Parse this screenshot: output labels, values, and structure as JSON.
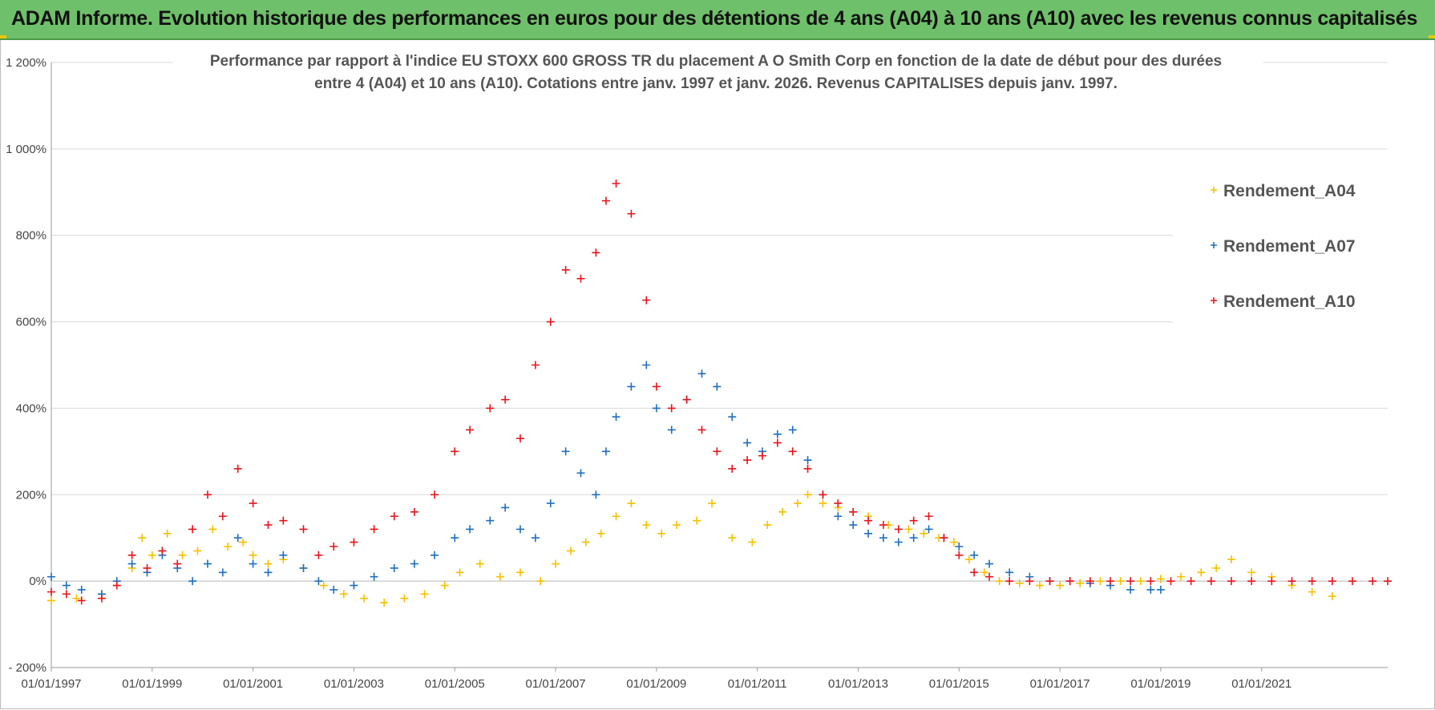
{
  "banner": {
    "title": "ADAM Informe. Evolution historique des performances en euros pour des détentions de 4 ans (A04) à 10 ans (A10) avec les revenus connus capitalisés"
  },
  "chart_data": {
    "type": "scatter",
    "title_lines": [
      "Performance par rapport à l'indice EU STOXX 600 GROSS TR  du placement A O Smith Corp en fonction de la date de début pour des durées",
      "entre 4 (A04) et 10 ans (A10).  Cotations entre janv. 1997 et janv. 2026. Revenus CAPITALISES depuis janv. 1997."
    ],
    "xlabel": "",
    "ylabel": "",
    "xlim": [
      1997.0,
      2023.5
    ],
    "ylim": [
      -200,
      1200
    ],
    "x_ticks": [
      1997,
      1999,
      2001,
      2003,
      2005,
      2007,
      2009,
      2011,
      2013,
      2015,
      2017,
      2019,
      2021
    ],
    "x_tick_labels": [
      "01/01/1997",
      "01/01/1999",
      "01/01/2001",
      "01/01/2003",
      "01/01/2005",
      "01/01/2007",
      "01/01/2009",
      "01/01/2011",
      "01/01/2013",
      "01/01/2015",
      "01/01/2017",
      "01/01/2019",
      "01/01/2021"
    ],
    "y_ticks": [
      -200,
      0,
      200,
      400,
      600,
      800,
      1000,
      1200
    ],
    "y_tick_labels": [
      "- 200%",
      "0%",
      "200%",
      "400%",
      "600%",
      "800%",
      "1 000%",
      "1 200%"
    ],
    "grid": "horizontal",
    "legend_position": "top-right",
    "series": [
      {
        "name": "Rendement_A04",
        "color": "#f5c000",
        "x": [
          1997.0,
          1997.5,
          1998.0,
          1998.3,
          1998.6,
          1998.8,
          1999.0,
          1999.3,
          1999.6,
          1999.9,
          2000.2,
          2000.5,
          2000.8,
          2001.0,
          2001.3,
          2001.6,
          2002.0,
          2002.4,
          2002.8,
          2003.2,
          2003.6,
          2004.0,
          2004.4,
          2004.8,
          2005.1,
          2005.5,
          2005.9,
          2006.3,
          2006.7,
          2007.0,
          2007.3,
          2007.6,
          2007.9,
          2008.2,
          2008.5,
          2008.8,
          2009.1,
          2009.4,
          2009.8,
          2010.1,
          2010.5,
          2010.9,
          2011.2,
          2011.5,
          2011.8,
          2012.0,
          2012.3,
          2012.6,
          2012.9,
          2013.2,
          2013.6,
          2014.0,
          2014.3,
          2014.6,
          2014.9,
          2015.2,
          2015.5,
          2015.8,
          2016.2,
          2016.6,
          2017.0,
          2017.4,
          2017.8,
          2018.2,
          2018.6,
          2019.0,
          2019.4,
          2019.8,
          2020.1,
          2020.4,
          2020.8,
          2021.2,
          2021.6,
          2022.0,
          2022.4
        ],
        "values": [
          -45,
          -40,
          -30,
          -10,
          30,
          100,
          60,
          110,
          60,
          70,
          120,
          80,
          90,
          60,
          40,
          50,
          30,
          -10,
          -30,
          -40,
          -50,
          -40,
          -30,
          -10,
          20,
          40,
          10,
          20,
          0,
          40,
          70,
          90,
          110,
          150,
          180,
          130,
          110,
          130,
          140,
          180,
          100,
          90,
          130,
          160,
          180,
          200,
          180,
          170,
          160,
          150,
          130,
          120,
          110,
          100,
          90,
          50,
          20,
          0,
          -5,
          -10,
          -10,
          -5,
          0,
          0,
          0,
          5,
          10,
          20,
          30,
          50,
          20,
          10,
          -10,
          -25,
          -35
        ]
      },
      {
        "name": "Rendement_A07",
        "color": "#1f6fbf",
        "x": [
          1997.0,
          1997.3,
          1997.6,
          1998.0,
          1998.3,
          1998.6,
          1998.9,
          1999.2,
          1999.5,
          1999.8,
          2000.1,
          2000.4,
          2000.7,
          2001.0,
          2001.3,
          2001.6,
          2002.0,
          2002.3,
          2002.6,
          2003.0,
          2003.4,
          2003.8,
          2004.2,
          2004.6,
          2005.0,
          2005.3,
          2005.7,
          2006.0,
          2006.3,
          2006.6,
          2006.9,
          2007.2,
          2007.5,
          2007.8,
          2008.0,
          2008.2,
          2008.5,
          2008.8,
          2009.0,
          2009.3,
          2009.6,
          2009.9,
          2010.2,
          2010.5,
          2010.8,
          2011.1,
          2011.4,
          2011.7,
          2012.0,
          2012.3,
          2012.6,
          2012.9,
          2013.2,
          2013.5,
          2013.8,
          2014.1,
          2014.4,
          2014.7,
          2015.0,
          2015.3,
          2015.6,
          2016.0,
          2016.4,
          2016.8,
          2017.2,
          2017.6,
          2018.0,
          2018.4,
          2018.8,
          2019.0
        ],
        "values": [
          10,
          -10,
          -20,
          -30,
          0,
          40,
          20,
          60,
          30,
          0,
          40,
          20,
          100,
          40,
          20,
          60,
          30,
          0,
          -20,
          -10,
          10,
          30,
          40,
          60,
          100,
          120,
          140,
          170,
          120,
          100,
          180,
          300,
          250,
          200,
          300,
          380,
          450,
          500,
          400,
          350,
          420,
          480,
          450,
          380,
          320,
          300,
          340,
          350,
          280,
          200,
          150,
          130,
          110,
          100,
          90,
          100,
          120,
          100,
          80,
          60,
          40,
          20,
          10,
          0,
          0,
          -5,
          -10,
          -20,
          -20,
          -20
        ]
      },
      {
        "name": "Rendement_A10",
        "color": "#e8141c",
        "x": [
          1997.0,
          1997.3,
          1997.6,
          1998.0,
          1998.3,
          1998.6,
          1998.9,
          1999.2,
          1999.5,
          1999.8,
          2000.1,
          2000.4,
          2000.7,
          2001.0,
          2001.3,
          2001.6,
          2002.0,
          2002.3,
          2002.6,
          2003.0,
          2003.4,
          2003.8,
          2004.2,
          2004.6,
          2005.0,
          2005.3,
          2005.7,
          2006.0,
          2006.3,
          2006.6,
          2006.9,
          2007.2,
          2007.5,
          2007.8,
          2008.0,
          2008.2,
          2008.5,
          2008.8,
          2009.0,
          2009.3,
          2009.6,
          2009.9,
          2010.2,
          2010.5,
          2010.8,
          2011.1,
          2011.4,
          2011.7,
          2012.0,
          2012.3,
          2012.6,
          2012.9,
          2013.2,
          2013.5,
          2013.8,
          2014.1,
          2014.4,
          2014.7,
          2015.0,
          2015.3,
          2015.6,
          2016.0,
          2016.4,
          2016.8,
          2017.2,
          2017.6,
          2018.0,
          2018.4,
          2018.8,
          2019.2,
          2019.6,
          2020.0,
          2020.4,
          2020.8,
          2021.2,
          2021.6,
          2022.0,
          2022.4,
          2022.8,
          2023.2,
          2023.5
        ],
        "values": [
          -25,
          -30,
          -45,
          -40,
          -10,
          60,
          30,
          70,
          40,
          120,
          200,
          150,
          260,
          180,
          130,
          140,
          120,
          60,
          80,
          90,
          120,
          150,
          160,
          200,
          300,
          350,
          400,
          420,
          330,
          500,
          600,
          720,
          700,
          760,
          880,
          920,
          850,
          650,
          450,
          400,
          420,
          350,
          300,
          260,
          280,
          290,
          320,
          300,
          260,
          200,
          180,
          160,
          140,
          130,
          120,
          140,
          150,
          100,
          60,
          20,
          10,
          0,
          0,
          0,
          0,
          0,
          0,
          0,
          0,
          0,
          0,
          0,
          0,
          0,
          0,
          0,
          0,
          0,
          0,
          0,
          0
        ]
      }
    ]
  }
}
